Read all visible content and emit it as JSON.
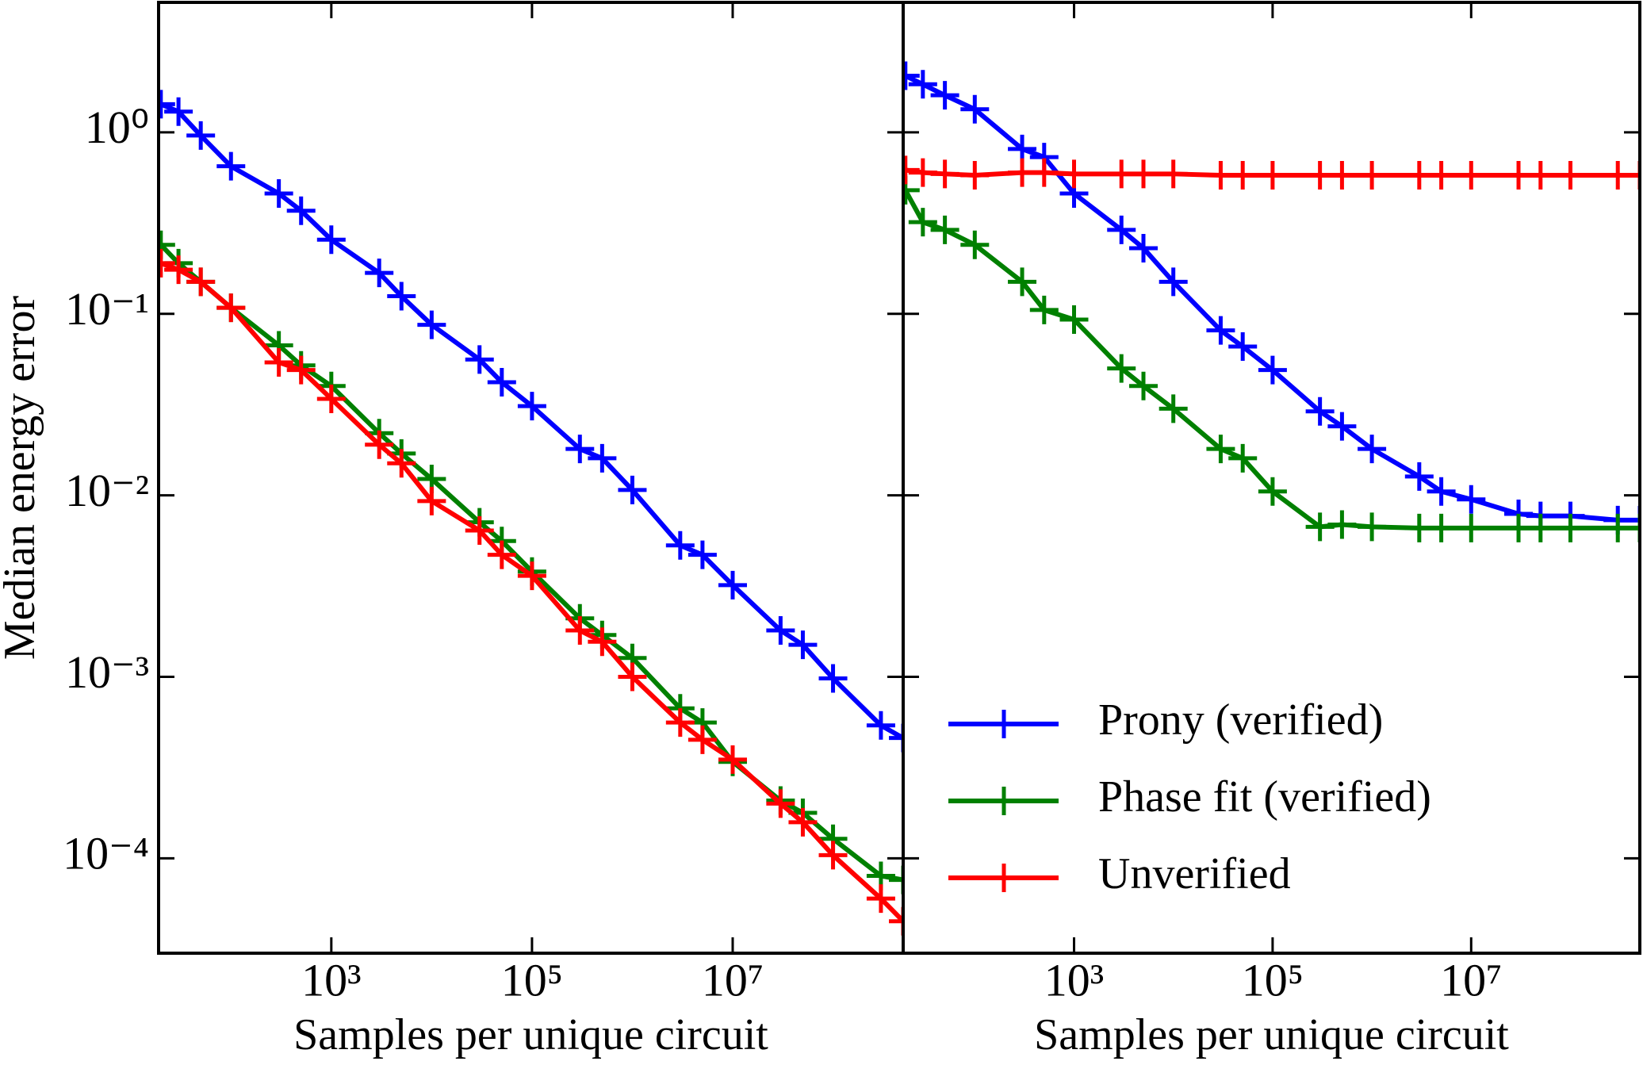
{
  "chart_data": [
    {
      "type": "line",
      "xlabel": "Samples per unique circuit",
      "ylabel": "Median energy error",
      "log_x": true,
      "log_y": true,
      "xlim": [
        19,
        500000000
      ],
      "ylim": [
        3e-05,
        5.2
      ],
      "xticks": [
        {
          "value": 1000,
          "label": "10³"
        },
        {
          "value": 100000,
          "label": "10⁵"
        },
        {
          "value": 10000000,
          "label": "10⁷"
        }
      ],
      "yticks": [
        {
          "value": 0.0001,
          "label": "10⁻⁴"
        },
        {
          "value": 0.001,
          "label": "10⁻³"
        },
        {
          "value": 0.01,
          "label": "10⁻²"
        },
        {
          "value": 0.1,
          "label": "10⁻¹"
        },
        {
          "value": 1,
          "label": "10⁰"
        }
      ],
      "x": [
        20,
        30,
        50,
        100,
        300,
        500,
        1000,
        3000,
        5000,
        10000,
        30000,
        50000,
        100000,
        300000,
        500000,
        1000000,
        3000000,
        5000000,
        10000000,
        30000000,
        50000000,
        100000000,
        300000000,
        500000000
      ],
      "series": [
        {
          "name": "Prony (verified)",
          "color": "#0000ff",
          "values": [
            1.43,
            1.3,
            0.96,
            0.65,
            0.46,
            0.37,
            0.256,
            0.168,
            0.125,
            0.087,
            0.056,
            0.042,
            0.031,
            0.018,
            0.016,
            0.0107,
            0.0053,
            0.0047,
            0.0032,
            0.0018,
            0.0015,
            0.00098,
            0.00054,
            0.00046
          ]
        },
        {
          "name": "Phase fit (verified)",
          "color": "#008000",
          "values": [
            0.24,
            0.19,
            0.15,
            0.108,
            0.067,
            0.052,
            0.04,
            0.022,
            0.017,
            0.0123,
            0.0071,
            0.0056,
            0.0038,
            0.0021,
            0.0017,
            0.00127,
            0.00067,
            0.00056,
            0.00034,
            0.000208,
            0.000178,
            0.000128,
            8e-05,
            7.6e-05
          ]
        },
        {
          "name": "Unverified",
          "color": "#ff0000",
          "values": [
            0.19,
            0.175,
            0.15,
            0.108,
            0.054,
            0.049,
            0.034,
            0.019,
            0.015,
            0.0093,
            0.0064,
            0.0047,
            0.0036,
            0.0018,
            0.00156,
            0.001,
            0.00056,
            0.00045,
            0.00035,
            0.0002,
            0.000158,
            0.000104,
            6e-05,
            4.5e-05
          ]
        }
      ]
    },
    {
      "type": "line",
      "xlabel": "Samples per unique circuit",
      "sharey": true,
      "log_x": true,
      "log_y": true,
      "legend": "lower left",
      "xlim": [
        19,
        500000000
      ],
      "xticks": [
        {
          "value": 1000,
          "label": "10³"
        },
        {
          "value": 100000,
          "label": "10⁵"
        },
        {
          "value": 10000000,
          "label": "10⁷"
        }
      ],
      "x": [
        20,
        30,
        50,
        100,
        300,
        500,
        1000,
        3000,
        5000,
        10000,
        30000,
        50000,
        100000,
        300000,
        500000,
        1000000,
        3000000,
        5000000,
        10000000,
        30000000,
        50000000,
        100000000,
        300000000,
        500000000
      ],
      "series": [
        {
          "name": "Prony (verified)",
          "color": "#0000ff",
          "values": [
            2.05,
            1.84,
            1.6,
            1.34,
            0.81,
            0.73,
            0.46,
            0.29,
            0.23,
            0.15,
            0.081,
            0.066,
            0.049,
            0.029,
            0.024,
            0.018,
            0.0127,
            0.0105,
            0.0095,
            0.0079,
            0.0077,
            0.0077,
            0.0073,
            0.0073
          ]
        },
        {
          "name": "Phase fit (verified)",
          "color": "#008000",
          "values": [
            0.48,
            0.32,
            0.29,
            0.24,
            0.15,
            0.105,
            0.093,
            0.05,
            0.04,
            0.03,
            0.018,
            0.016,
            0.0105,
            0.0067,
            0.0069,
            0.0067,
            0.0066,
            0.0066,
            0.0066,
            0.0066,
            0.0066,
            0.0066,
            0.0066,
            0.0066
          ]
        },
        {
          "name": "Unverified",
          "color": "#ff0000",
          "values": [
            0.62,
            0.6,
            0.59,
            0.58,
            0.6,
            0.6,
            0.59,
            0.59,
            0.59,
            0.59,
            0.58,
            0.58,
            0.58,
            0.58,
            0.58,
            0.58,
            0.58,
            0.58,
            0.58,
            0.58,
            0.58,
            0.58,
            0.58,
            0.58
          ]
        }
      ]
    }
  ]
}
